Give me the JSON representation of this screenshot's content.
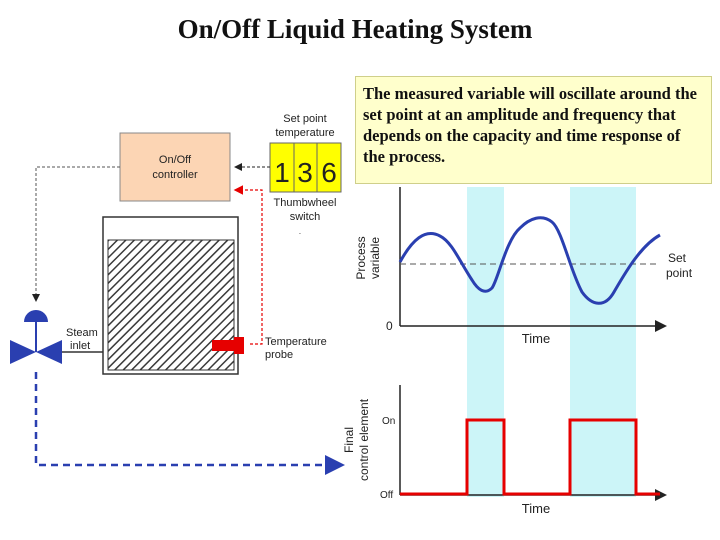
{
  "title": "On/Off Liquid Heating System",
  "explanation": "The measured variable will oscillate around the set point at an amplitude and frequency that depends on the capacity and time response of the process.",
  "controller": {
    "line1": "On/Off",
    "line2": "controller"
  },
  "thumbwheel": {
    "label_top_1": "Set point",
    "label_top_2": "temperature",
    "digits": [
      "1",
      "3",
      "6"
    ],
    "label_bottom_1": "Thumbwheel",
    "label_bottom_2": "switch"
  },
  "valve": {
    "label_1": "Steam",
    "label_2": "inlet"
  },
  "probe": {
    "label_1": "Temperature",
    "label_2": "probe"
  },
  "top_chart": {
    "ylabel_1": "Process",
    "ylabel_2": "variable",
    "xlabel": "Time",
    "origin_label": "0",
    "setpoint_label_1": "Set",
    "setpoint_label_2": "point"
  },
  "bottom_chart": {
    "ylabel_1": "Final",
    "ylabel_2": "control element",
    "xlabel": "Time",
    "on_label": "On",
    "off_label": "Off"
  },
  "colors": {
    "controller_fill": "#fcd5b4",
    "thumbwheel_fill": "#ffff00",
    "shade_fill": "#ccf5f8",
    "signal_red": "#e60000",
    "signal_blue": "#2a3fb0",
    "curve_blue": "#2a3fb0"
  }
}
